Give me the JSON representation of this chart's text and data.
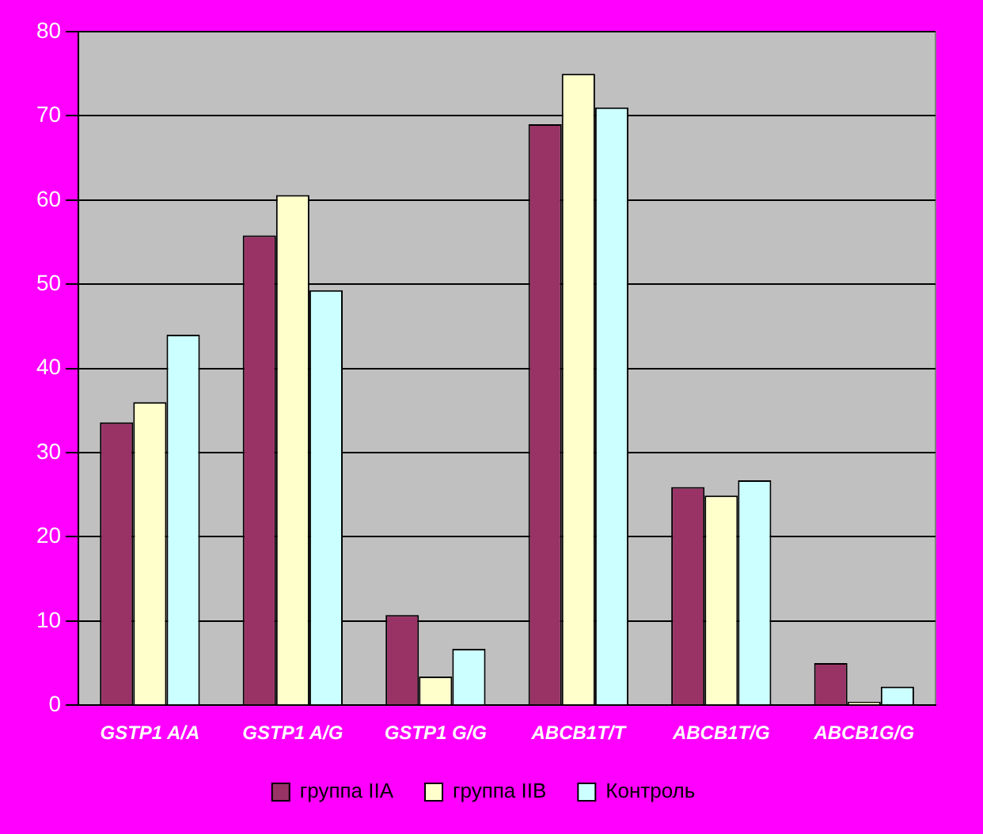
{
  "chart_data": {
    "type": "bar",
    "categories": [
      "GSTP1 A/A",
      "GSTP1 A/G",
      "GSTP1 G/G",
      "ABCB1T/T",
      "ABCB1T/G",
      "ABCB1G/G"
    ],
    "series": [
      {
        "name": "группа IIA",
        "color": "#993366",
        "values": [
          33.6,
          55.8,
          10.7,
          69,
          25.9,
          5
        ]
      },
      {
        "name": "группа IIB",
        "color": "#ffffcc",
        "values": [
          36,
          60.6,
          3.4,
          75,
          24.9,
          0.4
        ]
      },
      {
        "name": "Контроль",
        "color": "#ccffff",
        "values": [
          44,
          49.3,
          6.7,
          71,
          26.7,
          2.2
        ]
      }
    ],
    "ylim": [
      0,
      80
    ],
    "yticks": [
      0,
      10,
      20,
      30,
      40,
      50,
      60,
      70,
      80
    ],
    "grid": "y",
    "legend": "bottom"
  }
}
